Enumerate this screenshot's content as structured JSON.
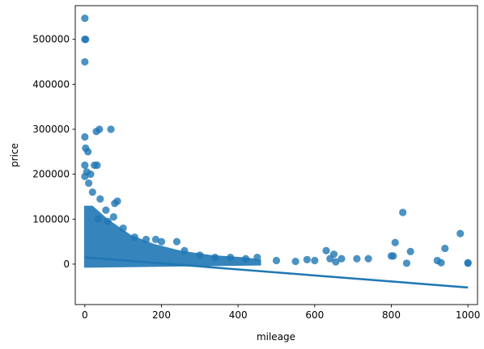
{
  "chart_data": {
    "type": "scatter",
    "title": "",
    "xlabel": "mileage",
    "ylabel": "price",
    "xlim": [
      -25,
      1025
    ],
    "ylim": [
      -90000,
      575000
    ],
    "x_ticks": [
      0,
      200,
      400,
      600,
      800,
      1000
    ],
    "y_ticks": [
      0,
      100000,
      200000,
      300000,
      400000,
      500000
    ],
    "grid": false,
    "colors": {
      "points": "#1f77b4",
      "regression": "#1f77b4"
    },
    "regression": {
      "x": [
        0,
        1000
      ],
      "y": [
        15000,
        -52000
      ]
    },
    "series": [
      {
        "values": [
          [
            0,
            547000
          ],
          [
            0,
            500000
          ],
          [
            2,
            500000
          ],
          [
            0,
            450000
          ],
          [
            30,
            295000
          ],
          [
            38,
            300000
          ],
          [
            68,
            300000
          ],
          [
            0,
            283000
          ],
          [
            2,
            258000
          ],
          [
            8,
            250000
          ],
          [
            25,
            220000
          ],
          [
            32,
            220000
          ],
          [
            0,
            220000
          ],
          [
            5,
            205000
          ],
          [
            15,
            200000
          ],
          [
            0,
            195000
          ],
          [
            10,
            180000
          ],
          [
            20,
            160000
          ],
          [
            40,
            145000
          ],
          [
            85,
            140000
          ],
          [
            78,
            135000
          ],
          [
            55,
            120000
          ],
          [
            75,
            105000
          ],
          [
            60,
            95000
          ],
          [
            35,
            100000
          ],
          [
            100,
            80000
          ],
          [
            130,
            60000
          ],
          [
            160,
            55000
          ],
          [
            185,
            55000
          ],
          [
            200,
            50000
          ],
          [
            240,
            50000
          ],
          [
            260,
            30000
          ],
          [
            300,
            20000
          ],
          [
            340,
            15000
          ],
          [
            380,
            15000
          ],
          [
            420,
            12000
          ],
          [
            450,
            15000
          ],
          [
            500,
            8000
          ],
          [
            550,
            6000
          ],
          [
            580,
            10000
          ],
          [
            600,
            8000
          ],
          [
            630,
            30000
          ],
          [
            640,
            12000
          ],
          [
            650,
            22000
          ],
          [
            655,
            5000
          ],
          [
            670,
            12000
          ],
          [
            710,
            12000
          ],
          [
            740,
            12000
          ],
          [
            800,
            18000
          ],
          [
            805,
            18000
          ],
          [
            810,
            48000
          ],
          [
            830,
            115000
          ],
          [
            840,
            2000
          ],
          [
            850,
            28000
          ],
          [
            920,
            8000
          ],
          [
            930,
            3000
          ],
          [
            940,
            35000
          ],
          [
            980,
            68000
          ],
          [
            1000,
            2000
          ],
          [
            1000,
            3000
          ]
        ]
      }
    ]
  }
}
